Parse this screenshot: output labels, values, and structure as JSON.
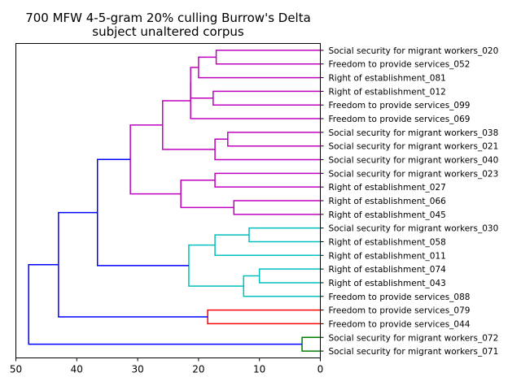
{
  "chart_data": {
    "type": "dendrogram",
    "title": [
      "700 MFW 4-5-gram 20% culling Burrow's Delta",
      "subject unaltered corpus"
    ],
    "orientation": "left",
    "xlabel": "",
    "ylabel": "",
    "xlim": [
      50,
      0
    ],
    "xticks": [
      50,
      40,
      30,
      20,
      10,
      0
    ],
    "grid": false,
    "leaves": [
      "Social security for migrant workers_020",
      "Freedom to provide services_052",
      "Right of establishment_081",
      "Right of establishment_012",
      "Freedom to provide services_099",
      "Freedom to provide services_069",
      "Social security for migrant workers_038",
      "Social security for migrant workers_021",
      "Social security for migrant workers_040",
      "Social security for migrant workers_023",
      "Right of establishment_027",
      "Right of establishment_066",
      "Right of establishment_045",
      "Social security for migrant workers_030",
      "Right of establishment_058",
      "Right of establishment_011",
      "Right of establishment_074",
      "Right of establishment_043",
      "Freedom to provide services_088",
      "Freedom to provide services_079",
      "Freedom to provide services_044",
      "Social security for migrant workers_072",
      "Social security for migrant workers_071"
    ],
    "merges": [
      {
        "a": "L0",
        "b": "L1",
        "height": 17.1,
        "color": "#bf00bf"
      },
      {
        "a": "L3",
        "b": "L4",
        "height": 17.6,
        "color": "#bf00bf"
      },
      {
        "a": "M0",
        "b": "L2",
        "height": 20.0,
        "color": "#bf00bf"
      },
      {
        "a": "M2",
        "b": "M1",
        "height": 21.3,
        "color": "#bf00bf"
      },
      {
        "a": "M3",
        "b": "L5",
        "height": 21.3,
        "color": "#bf00bf"
      },
      {
        "a": "L6",
        "b": "L7",
        "height": 15.2,
        "color": "#bf00bf"
      },
      {
        "a": "M5",
        "b": "L8",
        "height": 17.3,
        "color": "#bf00bf"
      },
      {
        "a": "M4",
        "b": "M6",
        "height": 25.9,
        "color": "#bf00bf"
      },
      {
        "a": "L9",
        "b": "L10",
        "height": 17.3,
        "color": "#bf00bf"
      },
      {
        "a": "L11",
        "b": "L12",
        "height": 14.2,
        "color": "#bf00bf"
      },
      {
        "a": "M8",
        "b": "M9",
        "height": 22.9,
        "color": "#bf00bf"
      },
      {
        "a": "M7",
        "b": "M10",
        "height": 31.2,
        "color": "#bf00bf"
      },
      {
        "a": "L13",
        "b": "L14",
        "height": 11.7,
        "color": "#00bfbf"
      },
      {
        "a": "M12",
        "b": "L15",
        "height": 17.3,
        "color": "#00bfbf"
      },
      {
        "a": "L16",
        "b": "L17",
        "height": 10.0,
        "color": "#00bfbf"
      },
      {
        "a": "M14",
        "b": "L18",
        "height": 12.6,
        "color": "#00bfbf"
      },
      {
        "a": "M13",
        "b": "M15",
        "height": 21.6,
        "color": "#00bfbf"
      },
      {
        "a": "M11",
        "b": "M16",
        "height": 36.6,
        "color": "#0000ff"
      },
      {
        "a": "L19",
        "b": "L20",
        "height": 18.5,
        "color": "#ff0000"
      },
      {
        "a": "M17",
        "b": "M18",
        "height": 43.0,
        "color": "#0000ff"
      },
      {
        "a": "L21",
        "b": "L22",
        "height": 3.0,
        "color": "#008000"
      },
      {
        "a": "M19",
        "b": "M20",
        "height": 47.9,
        "color": "#0000ff"
      }
    ]
  }
}
